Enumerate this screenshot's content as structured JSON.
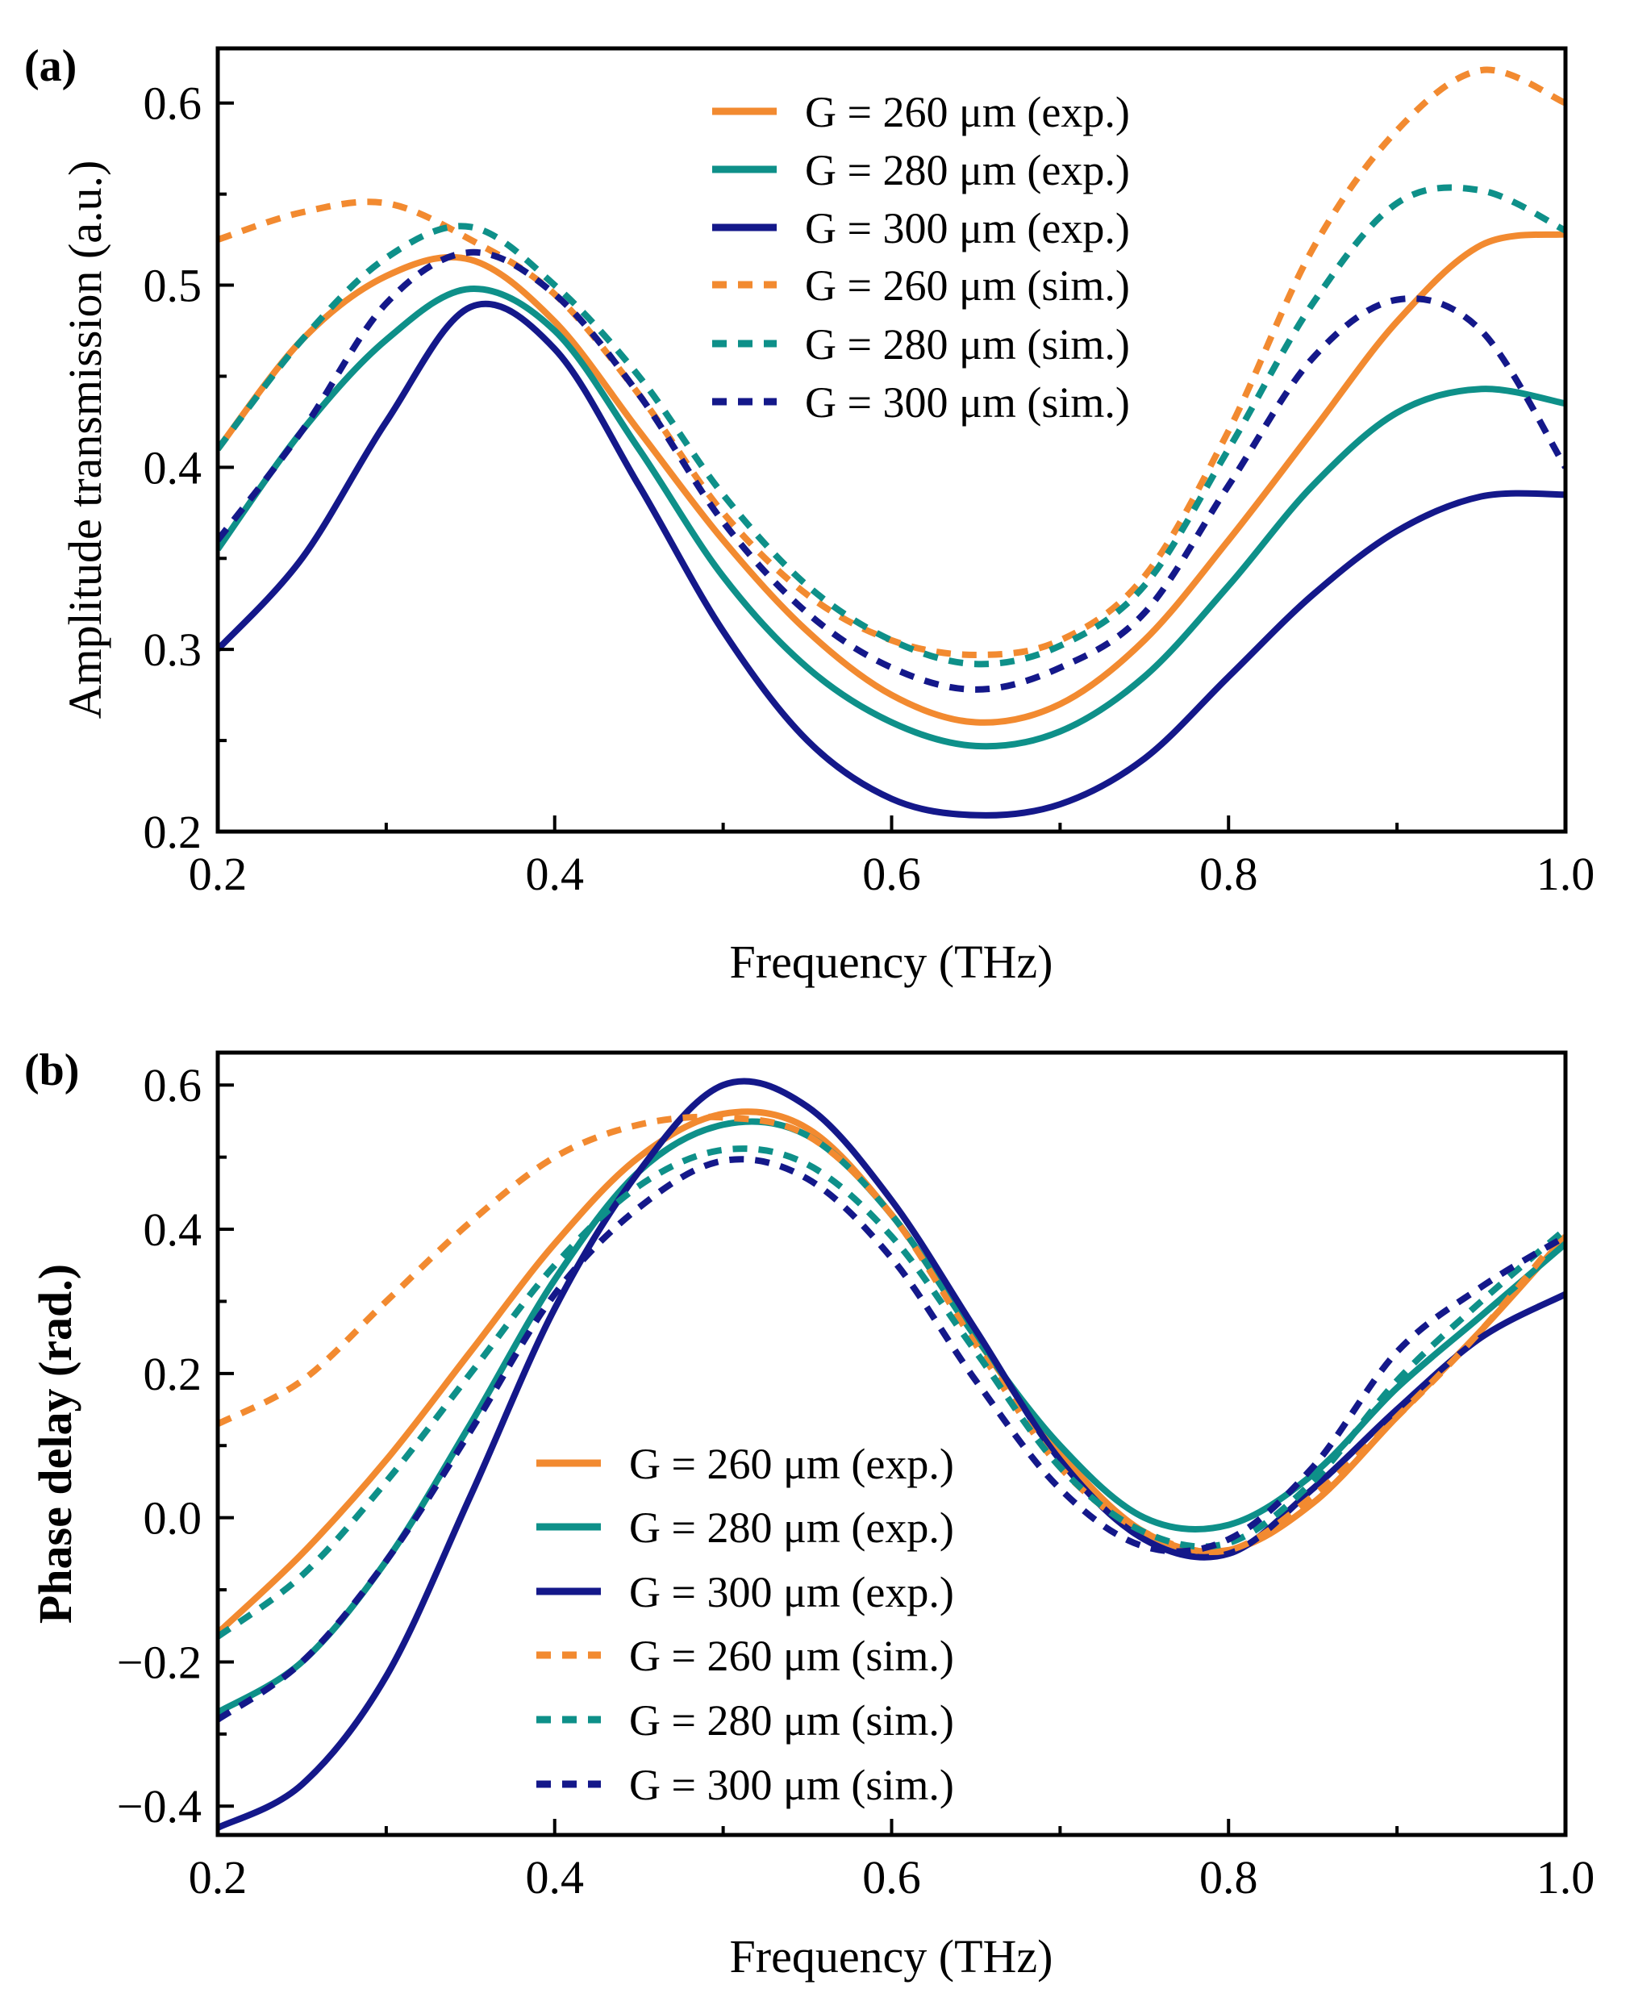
{
  "colors": {
    "g260": "#F28A30",
    "g280": "#0E9089",
    "g300": "#14188A"
  },
  "chart_data": [
    {
      "type": "line",
      "panel_label": "(a)",
      "xlabel": "Frequency (THz)",
      "ylabel": "Amplitude transmission (a.u.)",
      "xlim": [
        0.2,
        1.0
      ],
      "ylim": [
        0.2,
        0.63
      ],
      "xticks": [
        0.2,
        0.4,
        0.6,
        0.8,
        1.0
      ],
      "xtick_labels": [
        "0.2",
        "0.4",
        "0.6",
        "0.8",
        "1.0"
      ],
      "xminor": [
        0.3,
        0.5,
        0.7,
        0.9
      ],
      "yticks": [
        0.2,
        0.3,
        0.4,
        0.5,
        0.6
      ],
      "ytick_labels": [
        "0.2",
        "0.3",
        "0.4",
        "0.5",
        "0.6"
      ],
      "yminor": [
        0.25,
        0.35,
        0.45,
        0.55
      ],
      "legend_position": "top-right",
      "x": [
        0.2,
        0.25,
        0.3,
        0.35,
        0.4,
        0.45,
        0.5,
        0.55,
        0.6,
        0.65,
        0.7,
        0.75,
        0.8,
        0.85,
        0.9,
        0.95,
        1.0
      ],
      "series": [
        {
          "name": "G = 260 μm (exp.)",
          "color_key": "g260",
          "style": "solid",
          "values": [
            0.41,
            0.47,
            0.505,
            0.514,
            0.48,
            0.42,
            0.36,
            0.31,
            0.275,
            0.26,
            0.27,
            0.305,
            0.36,
            0.42,
            0.48,
            0.522,
            0.528
          ]
        },
        {
          "name": "G = 280 μm (exp.)",
          "color_key": "g280",
          "style": "solid",
          "values": [
            0.355,
            0.42,
            0.47,
            0.498,
            0.475,
            0.41,
            0.34,
            0.29,
            0.26,
            0.247,
            0.255,
            0.285,
            0.335,
            0.39,
            0.43,
            0.443,
            0.435
          ]
        },
        {
          "name": "G = 300 μm (exp.)",
          "color_key": "g300",
          "style": "solid",
          "values": [
            0.3,
            0.35,
            0.425,
            0.488,
            0.465,
            0.39,
            0.31,
            0.25,
            0.218,
            0.209,
            0.215,
            0.24,
            0.285,
            0.33,
            0.365,
            0.384,
            0.385
          ]
        },
        {
          "name": "G = 260 μm (sim.)",
          "color_key": "g260",
          "style": "dashed",
          "values": [
            0.525,
            0.54,
            0.545,
            0.525,
            0.495,
            0.44,
            0.375,
            0.33,
            0.305,
            0.297,
            0.305,
            0.34,
            0.42,
            0.52,
            0.585,
            0.618,
            0.6
          ]
        },
        {
          "name": "G = 280 μm (sim.)",
          "color_key": "g280",
          "style": "dashed",
          "values": [
            0.41,
            0.47,
            0.515,
            0.532,
            0.5,
            0.45,
            0.385,
            0.335,
            0.305,
            0.292,
            0.302,
            0.335,
            0.41,
            0.49,
            0.545,
            0.552,
            0.53
          ]
        },
        {
          "name": "G = 300 μm (sim.)",
          "color_key": "g300",
          "style": "dashed",
          "values": [
            0.36,
            0.42,
            0.49,
            0.518,
            0.495,
            0.44,
            0.37,
            0.32,
            0.29,
            0.278,
            0.29,
            0.32,
            0.39,
            0.46,
            0.492,
            0.475,
            0.4
          ]
        }
      ]
    },
    {
      "type": "line",
      "panel_label": "(b)",
      "xlabel": "Frequency (THz)",
      "ylabel": "Phase delay (rad.)",
      "xlim": [
        0.2,
        1.0
      ],
      "ylim": [
        -0.44,
        0.645
      ],
      "xticks": [
        0.2,
        0.4,
        0.6,
        0.8,
        1.0
      ],
      "xtick_labels": [
        "0.2",
        "0.4",
        "0.6",
        "0.8",
        "1.0"
      ],
      "xminor": [
        0.3,
        0.5,
        0.7,
        0.9
      ],
      "yticks": [
        -0.4,
        -0.2,
        0.0,
        0.2,
        0.4,
        0.6
      ],
      "ytick_labels": [
        "−0.4",
        "−0.2",
        "0.0",
        "0.2",
        "0.4",
        "0.6"
      ],
      "yminor": [
        -0.3,
        -0.1,
        0.1,
        0.3,
        0.5
      ],
      "legend_position": "bottom-center",
      "x": [
        0.2,
        0.25,
        0.3,
        0.35,
        0.4,
        0.45,
        0.5,
        0.55,
        0.6,
        0.65,
        0.7,
        0.75,
        0.8,
        0.85,
        0.9,
        0.95,
        1.0
      ],
      "series": [
        {
          "name": "G = 260 μm (exp.)",
          "color_key": "g260",
          "style": "solid",
          "values": [
            -0.16,
            -0.05,
            0.08,
            0.23,
            0.38,
            0.5,
            0.56,
            0.54,
            0.42,
            0.25,
            0.09,
            -0.02,
            -0.045,
            0.02,
            0.14,
            0.26,
            0.39
          ]
        },
        {
          "name": "G = 280 μm (exp.)",
          "color_key": "g280",
          "style": "solid",
          "values": [
            -0.27,
            -0.2,
            -0.06,
            0.13,
            0.33,
            0.48,
            0.545,
            0.53,
            0.42,
            0.25,
            0.1,
            0.0,
            -0.01,
            0.06,
            0.18,
            0.28,
            0.38
          ]
        },
        {
          "name": "G = 300 μm (exp.)",
          "color_key": "g300",
          "style": "solid",
          "values": [
            -0.43,
            -0.37,
            -0.22,
            0.03,
            0.29,
            0.48,
            0.6,
            0.57,
            0.44,
            0.26,
            0.08,
            -0.03,
            -0.05,
            0.04,
            0.15,
            0.25,
            0.31
          ]
        },
        {
          "name": "G = 260 μm (sim.)",
          "color_key": "g260",
          "style": "dashed",
          "values": [
            0.13,
            0.19,
            0.3,
            0.41,
            0.5,
            0.545,
            0.555,
            0.53,
            0.42,
            0.24,
            0.07,
            -0.02,
            -0.045,
            0.03,
            0.14,
            0.26,
            0.4
          ]
        },
        {
          "name": "G = 280 μm (sim.)",
          "color_key": "g280",
          "style": "dashed",
          "values": [
            -0.165,
            -0.08,
            0.05,
            0.2,
            0.35,
            0.46,
            0.51,
            0.49,
            0.39,
            0.23,
            0.07,
            -0.02,
            -0.035,
            0.05,
            0.19,
            0.3,
            0.4
          ]
        },
        {
          "name": "G = 300 μm (sim.)",
          "color_key": "g300",
          "style": "dashed",
          "values": [
            -0.28,
            -0.2,
            -0.06,
            0.12,
            0.31,
            0.43,
            0.495,
            0.47,
            0.36,
            0.19,
            0.04,
            -0.04,
            -0.03,
            0.07,
            0.23,
            0.32,
            0.39
          ]
        }
      ]
    }
  ]
}
